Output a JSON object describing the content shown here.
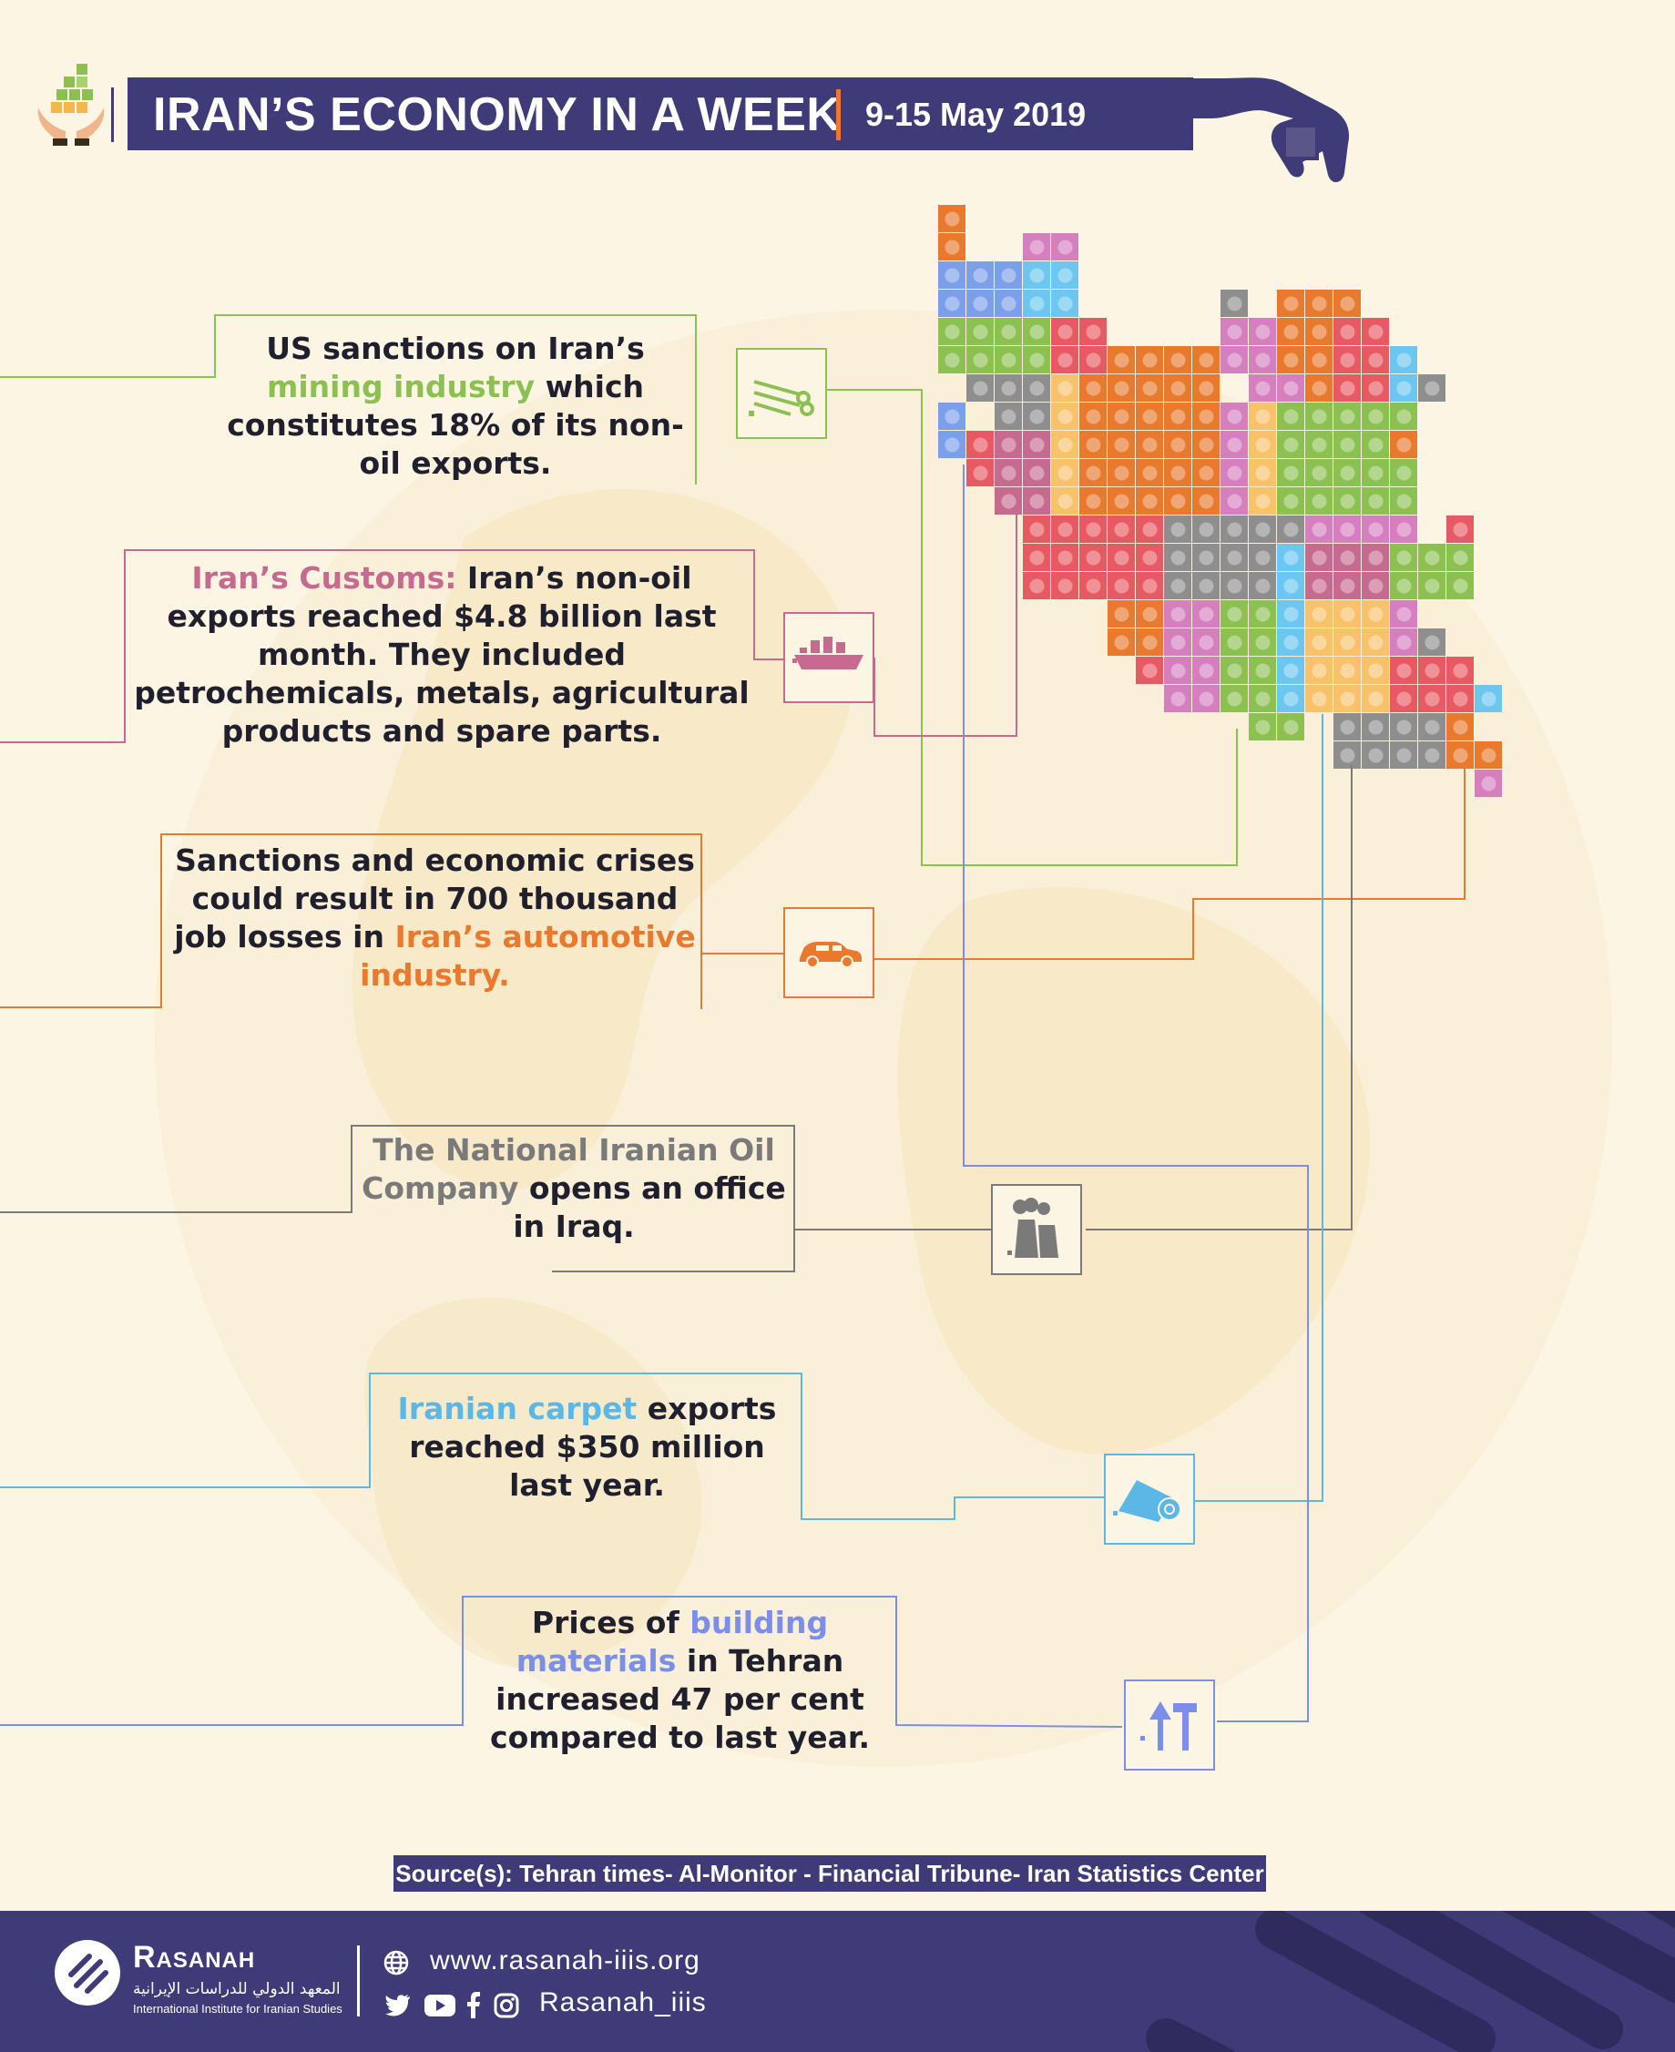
{
  "header": {
    "title": "IRAN’S ECONOMY IN A WEEK",
    "date": "9-15 May 2019"
  },
  "colors": {
    "navy": "#3f3a78",
    "orange": "#e8792d",
    "green": "#8cc152",
    "pink": "#c66b8f",
    "gray": "#7a7a7a",
    "blue": "#5bb7e5",
    "periwinkle": "#7b8fe8",
    "background": "#fcf5e4"
  },
  "news": [
    {
      "parts": [
        {
          "text": "US sanctions on Iran’s ",
          "hl": false
        },
        {
          "text": "mining industry",
          "hl": true
        },
        {
          "text": " which constitutes 18% of its non-oil exports.",
          "hl": false
        }
      ],
      "icon": "pipes-icon",
      "color": "#8cc152"
    },
    {
      "parts": [
        {
          "text": "Iran’s Customs:",
          "hl": true
        },
        {
          "text": " Iran’s non-oil exports reached $4.8 billion last month. They included petrochemicals, metals, agricultural products and spare parts.",
          "hl": false
        }
      ],
      "icon": "cargo-ship-icon",
      "color": "#c66b8f"
    },
    {
      "parts": [
        {
          "text": "Sanctions and economic crises could result in 700 thousand job losses in ",
          "hl": false
        },
        {
          "text": "Iran’s automotive industry.",
          "hl": true
        }
      ],
      "icon": "car-icon",
      "color": "#e8792d"
    },
    {
      "parts": [
        {
          "text": "The National Iranian Oil Company",
          "hl": true
        },
        {
          "text": " opens an office in Iraq.",
          "hl": false
        }
      ],
      "icon": "factory-icon",
      "color": "#7a7a7a"
    },
    {
      "parts": [
        {
          "text": "Iranian carpet",
          "hl": true
        },
        {
          "text": " exports reached $350 million last year.",
          "hl": false
        }
      ],
      "icon": "carpet-roll-icon",
      "color": "#5bb7e5"
    },
    {
      "parts": [
        {
          "text": "Prices of ",
          "hl": false
        },
        {
          "text": "building materials",
          "hl": true
        },
        {
          "text": " in Tehran increased 47 per cent compared to last year.",
          "hl": false
        }
      ],
      "icon": "trowel-hammer-icon",
      "color": "#7b8fe8"
    }
  ],
  "source": "Source(s): Tehran times- Al-Monitor - Financial Tribune- Iran Statistics Center",
  "footer": {
    "brand": "Rasanah",
    "brand_arabic": "المعهد الدولي للدراسات الإيرانية",
    "brand_sub": "International Institute for Iranian Studies",
    "website": "www.rasanah-iiis.org",
    "handle": "Rasanah_iiis",
    "social_icons": [
      "twitter-icon",
      "youtube-icon",
      "facebook-icon",
      "instagram-icon"
    ]
  }
}
